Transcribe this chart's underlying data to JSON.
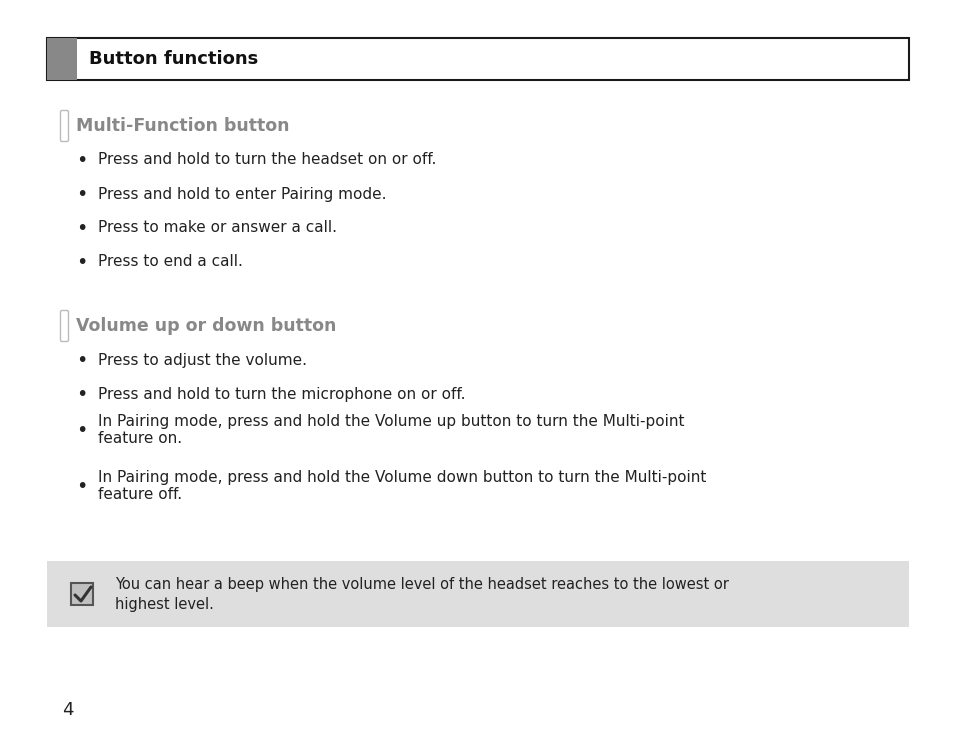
{
  "bg_color": "#ffffff",
  "header_box_color": "#ffffff",
  "header_box_border": "#1a1a1a",
  "header_gray_block": "#888888",
  "header_title": "Button functions",
  "header_title_color": "#111111",
  "header_title_fontsize": 13,
  "section1_title": "Multi-Function button",
  "section1_title_color": "#888888",
  "section1_title_fontsize": 12.5,
  "section1_bullets": [
    "Press and hold to turn the headset on or off.",
    "Press and hold to enter Pairing mode.",
    "Press to make or answer a call.",
    "Press to end a call."
  ],
  "section2_title": "Volume up or down button",
  "section2_title_color": "#888888",
  "section2_title_fontsize": 12.5,
  "section2_bullets": [
    "Press to adjust the volume.",
    "Press and hold to turn the microphone on or off.",
    "In Pairing mode, press and hold the Volume up button to turn the Multi-point\nfeature on.",
    "In Pairing mode, press and hold the Volume down button to turn the Multi-point\nfeature off."
  ],
  "bullet_fontsize": 11,
  "bullet_color": "#222222",
  "note_bg": "#dedede",
  "note_text_line1": "You can hear a beep when the volume level of the headset reaches to the lowest or",
  "note_text_line2": "highest level.",
  "note_fontsize": 10.5,
  "page_number": "4",
  "page_number_fontsize": 13,
  "fig_width": 9.54,
  "fig_height": 7.42,
  "dpi": 100
}
